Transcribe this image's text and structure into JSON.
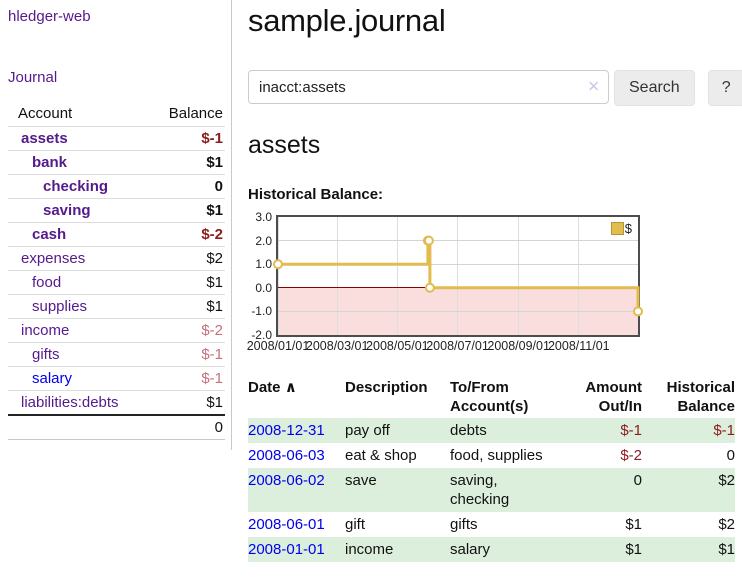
{
  "colors": {
    "purple": "#551A8B",
    "blue": "#0000EE",
    "neg-strong": "#8e1c20",
    "neg-soft": "#c2717d",
    "gold": "#e2bc4e",
    "pink": "#fadede",
    "rowgreen": "#dcefdc",
    "zero": "#8b0000"
  },
  "sidebar": {
    "app_title": "hledger-web",
    "journal_link": "Journal",
    "accounts": {
      "headers": [
        "Account",
        "Balance"
      ],
      "rows": [
        {
          "name": "assets",
          "balance": "$-1"
        },
        {
          "name": "bank",
          "balance": "$1"
        },
        {
          "name": "checking",
          "balance": "0"
        },
        {
          "name": "saving",
          "balance": "$1"
        },
        {
          "name": "cash",
          "balance": "$-2"
        },
        {
          "name": "expenses",
          "balance": "$2"
        },
        {
          "name": "food",
          "balance": "$1"
        },
        {
          "name": "supplies",
          "balance": "$1"
        },
        {
          "name": "income",
          "balance": "$-2"
        },
        {
          "name": "gifts",
          "balance": "$-1"
        },
        {
          "name": "salary",
          "balance": "$-1"
        },
        {
          "name": "liabilities:debts",
          "balance": "$1"
        }
      ],
      "total": "0"
    }
  },
  "main": {
    "title": "sample.journal",
    "search": {
      "value": "inacct:assets",
      "clear_icon": "✕",
      "button_label": "Search",
      "help_label": "?"
    },
    "account_heading": "assets",
    "chart_label": "Historical Balance:"
  },
  "chart_data": {
    "type": "line",
    "step": true,
    "title": "Historical Balance:",
    "x_range": [
      "2008-01-01",
      "2008-12-31"
    ],
    "ylim": [
      -2.0,
      3.0
    ],
    "yticks": [
      3.0,
      2.0,
      1.0,
      0.0,
      -1.0,
      -2.0
    ],
    "xticks": [
      "2008/01/01",
      "2008/03/01",
      "2008/05/01",
      "2008/07/01",
      "2008/09/01",
      "2008/11/01"
    ],
    "legend_position": "top-right",
    "grid": true,
    "negative_region_fill": "#fadede",
    "series": [
      {
        "name": "$",
        "color": "#e2bc4e",
        "points": [
          [
            "2008-01-01",
            1
          ],
          [
            "2008-06-01",
            2
          ],
          [
            "2008-06-02",
            2
          ],
          [
            "2008-06-03",
            0
          ],
          [
            "2008-12-31",
            -1
          ]
        ]
      }
    ]
  },
  "transactions": {
    "sort_icon": "∧",
    "headers": {
      "date": "Date",
      "description": "Description",
      "tofrom_1": "To/From",
      "tofrom_2": "Account(s)",
      "amount_1": "Amount",
      "amount_2": "Out/In",
      "hist_1": "Historical",
      "hist_2": "Balance"
    },
    "rows": [
      {
        "date": "2008-12-31",
        "description": "pay off",
        "accounts": "debts",
        "amount": "$-1",
        "historical": "$-1"
      },
      {
        "date": "2008-06-03",
        "description": "eat & shop",
        "accounts": "food, supplies",
        "amount": "$-2",
        "historical": "0"
      },
      {
        "date": "2008-06-02",
        "description": "save",
        "accounts": "saving,\nchecking",
        "amount": "0",
        "historical": "$2"
      },
      {
        "date": "2008-06-01",
        "description": "gift",
        "accounts": "gifts",
        "amount": "$1",
        "historical": "$2"
      },
      {
        "date": "2008-01-01",
        "description": "income",
        "accounts": "salary",
        "amount": "$1",
        "historical": "$1"
      }
    ]
  }
}
